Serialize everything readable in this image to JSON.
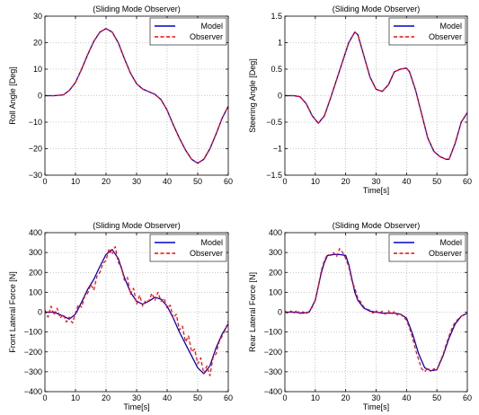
{
  "chart_data": [
    {
      "type": "line",
      "title": "(Sliding Mode Observer)",
      "xlabel": "",
      "ylabel": "Roll Angle [Deg]",
      "xlim": [
        0,
        60
      ],
      "ylim": [
        -30,
        30
      ],
      "xticks": [
        0,
        10,
        20,
        30,
        40,
        50,
        60
      ],
      "yticks": [
        -30,
        -20,
        -10,
        0,
        10,
        20,
        30
      ],
      "xtick_labels": [
        "0",
        "10",
        "20",
        "30",
        "40",
        "50",
        "60"
      ],
      "ytick_labels": [
        "−30",
        "−20",
        "−10",
        "0",
        "10",
        "20",
        "30"
      ],
      "grid": true,
      "legend": "top-right",
      "series": [
        {
          "name": "Model",
          "color": "#0000cc",
          "dash": "solid",
          "x": [
            0,
            3,
            6,
            8,
            10,
            12,
            14,
            16,
            18,
            20,
            22,
            24,
            26,
            28,
            30,
            32,
            34,
            36,
            38,
            40,
            42,
            44,
            46,
            48,
            50,
            52,
            54,
            56,
            58,
            60
          ],
          "y": [
            0,
            0,
            0.3,
            2,
            5,
            10,
            15.5,
            20.5,
            24,
            25.3,
            24,
            20,
            14,
            8.5,
            4.5,
            2.5,
            1.5,
            0.5,
            -1.5,
            -5.5,
            -11,
            -16,
            -20.5,
            -24,
            -25.5,
            -24,
            -20,
            -14.5,
            -8.5,
            -4
          ]
        },
        {
          "name": "Observer",
          "color": "#ff0000",
          "dash": "dashed",
          "x": [
            0,
            3,
            6,
            8,
            10,
            12,
            14,
            16,
            18,
            20,
            22,
            24,
            26,
            28,
            30,
            32,
            34,
            36,
            38,
            40,
            42,
            44,
            46,
            48,
            50,
            52,
            54,
            56,
            58,
            60
          ],
          "y": [
            0,
            0,
            0.3,
            2,
            5,
            10,
            15.5,
            20.5,
            24,
            25.3,
            24,
            20,
            14,
            8.5,
            4.5,
            2.5,
            1.5,
            0.5,
            -1.5,
            -5.5,
            -11,
            -16,
            -20.5,
            -24,
            -25.5,
            -24,
            -20,
            -14.5,
            -8.5,
            -4
          ]
        }
      ]
    },
    {
      "type": "line",
      "title": "(Sliding Mode Observer)",
      "xlabel": "Time[s]",
      "ylabel": "Steering Angle [Deg]",
      "xlim": [
        0,
        60
      ],
      "ylim": [
        -1.5,
        1.5
      ],
      "xticks": [
        0,
        10,
        20,
        30,
        40,
        50,
        60
      ],
      "yticks": [
        -1.5,
        -1,
        -0.5,
        0,
        0.5,
        1,
        1.5
      ],
      "xtick_labels": [
        "0",
        "10",
        "20",
        "30",
        "40",
        "50",
        "60"
      ],
      "ytick_labels": [
        "−1.5",
        "−1",
        "−0.5",
        "0",
        "0.5",
        "1",
        "1.5"
      ],
      "grid": true,
      "legend": "top-right",
      "series": [
        {
          "name": "Model",
          "color": "#0000cc",
          "dash": "solid",
          "x": [
            0,
            3,
            5,
            7,
            9,
            11,
            13,
            15,
            17,
            19,
            21,
            23,
            24,
            26,
            28,
            30,
            32,
            34,
            36,
            38,
            40,
            41,
            43,
            45,
            47,
            49,
            51,
            53,
            54,
            56,
            58,
            60
          ],
          "y": [
            0,
            0,
            -0.02,
            -0.15,
            -0.38,
            -0.52,
            -0.38,
            -0.05,
            0.3,
            0.65,
            1.0,
            1.2,
            1.15,
            0.75,
            0.35,
            0.12,
            0.08,
            0.2,
            0.45,
            0.5,
            0.52,
            0.45,
            0.1,
            -0.35,
            -0.8,
            -1.05,
            -1.15,
            -1.2,
            -1.2,
            -0.9,
            -0.5,
            -0.32
          ]
        },
        {
          "name": "Observer",
          "color": "#ff0000",
          "dash": "dashed",
          "x": [
            0,
            3,
            5,
            7,
            9,
            11,
            13,
            15,
            17,
            19,
            21,
            23,
            24,
            26,
            28,
            30,
            32,
            34,
            36,
            38,
            40,
            41,
            43,
            45,
            47,
            49,
            51,
            53,
            54,
            56,
            58,
            60
          ],
          "y": [
            0,
            0,
            -0.02,
            -0.15,
            -0.38,
            -0.52,
            -0.38,
            -0.05,
            0.3,
            0.65,
            1.0,
            1.2,
            1.15,
            0.75,
            0.35,
            0.12,
            0.08,
            0.2,
            0.45,
            0.5,
            0.52,
            0.45,
            0.1,
            -0.35,
            -0.8,
            -1.05,
            -1.15,
            -1.2,
            -1.2,
            -0.9,
            -0.5,
            -0.32
          ]
        }
      ]
    },
    {
      "type": "line",
      "title": "(Sliding Mode Observer)",
      "xlabel": "Time[s]",
      "ylabel": "Front Lateral Force [N]",
      "xlim": [
        0,
        60
      ],
      "ylim": [
        -400,
        400
      ],
      "xticks": [
        0,
        10,
        20,
        30,
        40,
        50,
        60
      ],
      "yticks": [
        -400,
        -300,
        -200,
        -100,
        0,
        100,
        200,
        300,
        400
      ],
      "xtick_labels": [
        "0",
        "10",
        "20",
        "30",
        "40",
        "50",
        "60"
      ],
      "ytick_labels": [
        "−400",
        "−300",
        "−200",
        "−100",
        "0",
        "100",
        "200",
        "300",
        "400"
      ],
      "grid": true,
      "legend": "top-right",
      "series": [
        {
          "name": "Model",
          "color": "#0000cc",
          "dash": "solid",
          "x": [
            0,
            3,
            6,
            8,
            10,
            12,
            14,
            16,
            18,
            20,
            22,
            24,
            26,
            28,
            30,
            32,
            34,
            36,
            38,
            40,
            42,
            44,
            46,
            48,
            50,
            52,
            54,
            56,
            58,
            60
          ],
          "y": [
            0,
            0,
            -20,
            -35,
            -10,
            50,
            115,
            165,
            230,
            290,
            315,
            270,
            175,
            100,
            55,
            40,
            55,
            75,
            65,
            30,
            -30,
            -100,
            -160,
            -220,
            -280,
            -310,
            -270,
            -180,
            -110,
            -60
          ]
        },
        {
          "name": "Observer",
          "color": "#ff0000",
          "dash": "dashed",
          "x": [
            0,
            1,
            2,
            3,
            4,
            5,
            6,
            7,
            8,
            9,
            10,
            11,
            12,
            13,
            14,
            15,
            16,
            17,
            18,
            19,
            20,
            21,
            22,
            23,
            24,
            25,
            26,
            27,
            28,
            29,
            30,
            31,
            32,
            33,
            34,
            35,
            36,
            37,
            38,
            39,
            40,
            41,
            42,
            43,
            44,
            45,
            46,
            47,
            48,
            49,
            50,
            51,
            52,
            53,
            54,
            55,
            56,
            57,
            58,
            59,
            60
          ],
          "y": [
            10,
            -25,
            30,
            -15,
            20,
            -30,
            -10,
            -50,
            -25,
            -55,
            -5,
            40,
            25,
            80,
            95,
            140,
            110,
            180,
            200,
            245,
            260,
            320,
            290,
            330,
            250,
            230,
            160,
            175,
            90,
            120,
            40,
            85,
            30,
            60,
            55,
            95,
            60,
            100,
            55,
            70,
            20,
            35,
            -30,
            -10,
            -90,
            -70,
            -150,
            -120,
            -200,
            -185,
            -260,
            -230,
            -310,
            -270,
            -320,
            -230,
            -210,
            -150,
            -120,
            -90,
            -45
          ]
        }
      ]
    },
    {
      "type": "line",
      "title": "(Sliding Mode Observer)",
      "xlabel": "Time[s]",
      "ylabel": "Rear Lateral Force [N]",
      "xlim": [
        0,
        60
      ],
      "ylim": [
        -400,
        400
      ],
      "xticks": [
        0,
        10,
        20,
        30,
        40,
        50,
        60
      ],
      "yticks": [
        -400,
        -300,
        -200,
        -100,
        0,
        100,
        200,
        300,
        400
      ],
      "xtick_labels": [
        "0",
        "10",
        "20",
        "30",
        "40",
        "50",
        "60"
      ],
      "ytick_labels": [
        "−400",
        "−300",
        "−200",
        "−100",
        "0",
        "100",
        "200",
        "300",
        "400"
      ],
      "grid": true,
      "legend": "top-right",
      "series": [
        {
          "name": "Model",
          "color": "#0000cc",
          "dash": "solid",
          "x": [
            0,
            3,
            6,
            8,
            10,
            11,
            12,
            13,
            14,
            16,
            18,
            20,
            21,
            22,
            23,
            24,
            26,
            28,
            30,
            32,
            34,
            36,
            38,
            40,
            42,
            44,
            46,
            48,
            50,
            52,
            54,
            56,
            58,
            60
          ],
          "y": [
            0,
            0,
            -5,
            0,
            60,
            130,
            200,
            250,
            285,
            290,
            290,
            285,
            240,
            170,
            100,
            60,
            20,
            5,
            0,
            -5,
            -5,
            -5,
            -10,
            -30,
            -110,
            -210,
            -280,
            -295,
            -290,
            -220,
            -130,
            -60,
            -20,
            -5
          ]
        },
        {
          "name": "Observer",
          "color": "#ff0000",
          "dash": "dashed",
          "x": [
            0,
            1,
            2,
            3,
            4,
            5,
            6,
            7,
            8,
            9,
            10,
            11,
            12,
            13,
            14,
            15,
            16,
            17,
            18,
            19,
            20,
            21,
            22,
            23,
            24,
            25,
            26,
            27,
            28,
            29,
            30,
            31,
            32,
            33,
            34,
            35,
            36,
            37,
            38,
            39,
            40,
            41,
            42,
            43,
            44,
            45,
            46,
            47,
            48,
            49,
            50,
            51,
            52,
            53,
            54,
            55,
            56,
            57,
            58,
            59,
            60
          ],
          "y": [
            5,
            -8,
            6,
            -5,
            10,
            -8,
            2,
            -10,
            5,
            25,
            60,
            130,
            210,
            260,
            290,
            285,
            300,
            280,
            320,
            300,
            270,
            230,
            160,
            120,
            70,
            50,
            25,
            15,
            10,
            -5,
            8,
            -8,
            5,
            -10,
            8,
            -12,
            5,
            -15,
            -10,
            -25,
            -40,
            -80,
            -130,
            -190,
            -240,
            -285,
            -300,
            -280,
            -300,
            -285,
            -290,
            -250,
            -215,
            -165,
            -120,
            -80,
            -50,
            -35,
            -20,
            -15,
            -5
          ]
        }
      ]
    }
  ]
}
